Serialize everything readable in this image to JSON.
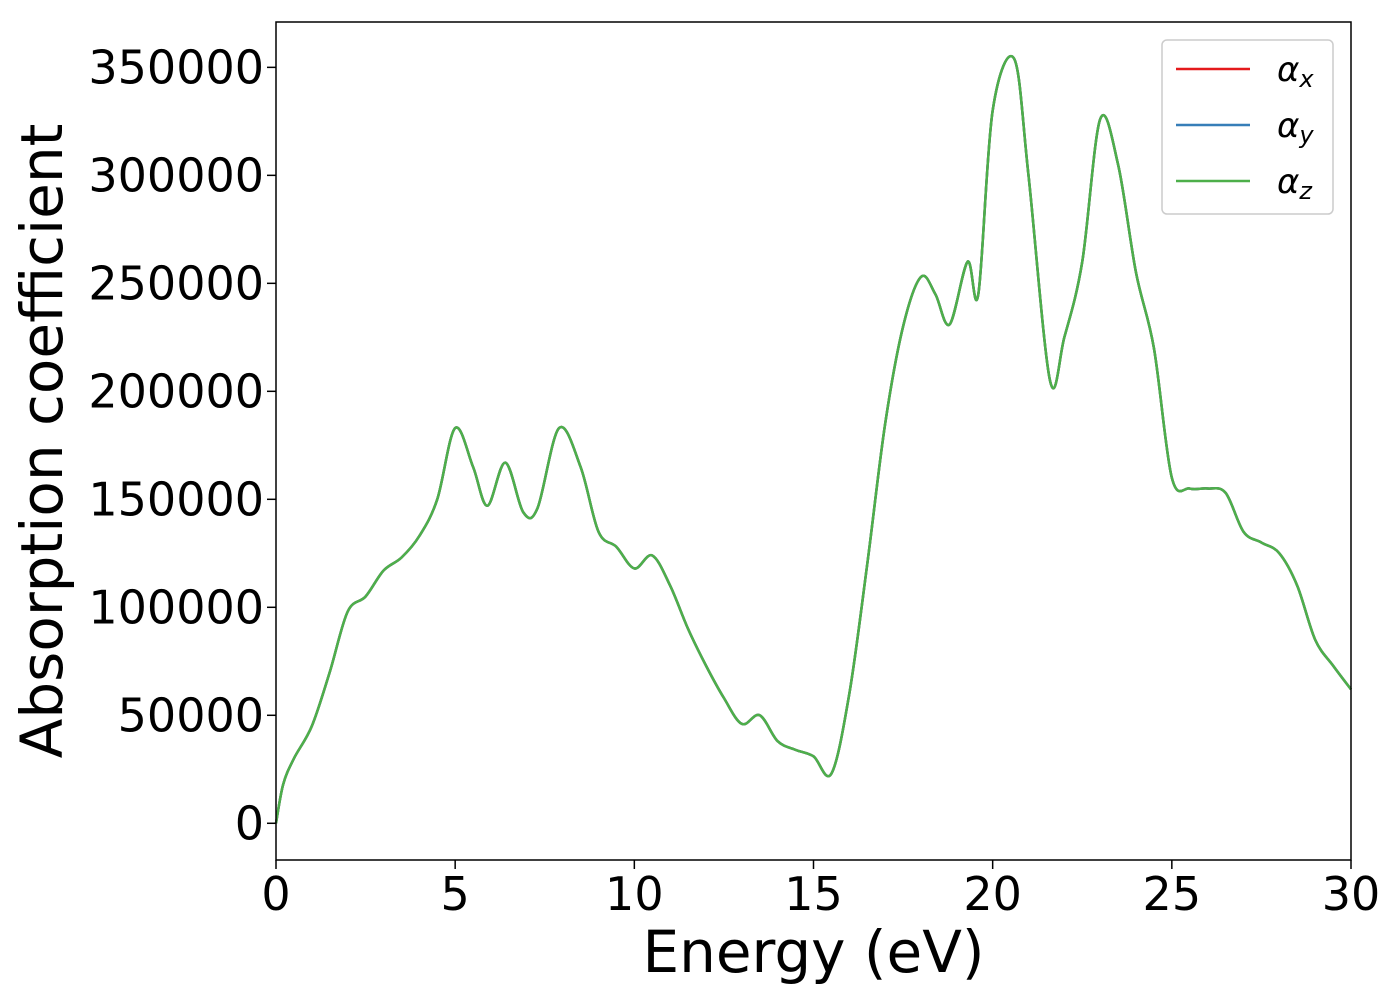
{
  "chart_data": {
    "type": "line",
    "title": "",
    "xlabel": "Energy (eV)",
    "ylabel": "Absorption coefficient",
    "xlim": [
      0,
      30
    ],
    "ylim": [
      -17000,
      371000
    ],
    "xticks": [
      0,
      5,
      10,
      15,
      20,
      25,
      30
    ],
    "xtick_labels": [
      "0",
      "5",
      "10",
      "15",
      "20",
      "25",
      "30"
    ],
    "yticks": [
      0,
      50000,
      100000,
      150000,
      200000,
      250000,
      300000,
      350000
    ],
    "ytick_labels": [
      "0",
      "50000",
      "100000",
      "150000",
      "200000",
      "250000",
      "300000",
      "350000"
    ],
    "grid": false,
    "legend_position": "top-right",
    "x": [
      0,
      0.2,
      0.5,
      1.0,
      1.5,
      2.0,
      2.5,
      3.0,
      3.5,
      4.0,
      4.5,
      5.0,
      5.5,
      5.9,
      6.4,
      6.9,
      7.3,
      7.9,
      8.5,
      9.0,
      9.5,
      10.0,
      10.5,
      11.0,
      11.5,
      12.0,
      12.5,
      13.0,
      13.5,
      14.0,
      14.5,
      15.0,
      15.5,
      16.0,
      16.5,
      17.0,
      17.5,
      18.0,
      18.4,
      18.8,
      19.3,
      19.6,
      20.0,
      20.6,
      21.0,
      21.6,
      22.0,
      22.5,
      23.0,
      23.5,
      24.0,
      24.5,
      25.0,
      25.5,
      26.0,
      26.5,
      27.0,
      27.5,
      28.0,
      28.5,
      29.0,
      29.5,
      30.0
    ],
    "series": [
      {
        "name": "αx",
        "label": "α",
        "sub": "x",
        "color": "#e41a1c",
        "values": [
          0,
          18000,
          30000,
          45000,
          70000,
          98000,
          105000,
          117000,
          123000,
          133000,
          150000,
          183000,
          165000,
          147000,
          167000,
          144000,
          146000,
          183000,
          165000,
          135000,
          128000,
          118000,
          124000,
          110000,
          90000,
          73000,
          58000,
          46000,
          50000,
          38000,
          34000,
          31000,
          23000,
          60000,
          120000,
          185000,
          230000,
          253000,
          245000,
          231000,
          260000,
          245000,
          330000,
          354000,
          300000,
          205000,
          225000,
          260000,
          326000,
          305000,
          255000,
          220000,
          160000,
          155000,
          155000,
          153000,
          135000,
          130000,
          125000,
          110000,
          85000,
          73000,
          62000
        ]
      },
      {
        "name": "αy",
        "label": "α",
        "sub": "y",
        "color": "#377eb8",
        "values": [
          0,
          18000,
          30000,
          45000,
          70000,
          98000,
          105000,
          117000,
          123000,
          133000,
          150000,
          183000,
          165000,
          147000,
          167000,
          144000,
          146000,
          183000,
          165000,
          135000,
          128000,
          118000,
          124000,
          110000,
          90000,
          73000,
          58000,
          46000,
          50000,
          38000,
          34000,
          31000,
          23000,
          60000,
          120000,
          185000,
          230000,
          253000,
          245000,
          231000,
          260000,
          245000,
          330000,
          354000,
          300000,
          205000,
          225000,
          260000,
          326000,
          305000,
          255000,
          220000,
          160000,
          155000,
          155000,
          153000,
          135000,
          130000,
          125000,
          110000,
          85000,
          73000,
          62000
        ]
      },
      {
        "name": "αz",
        "label": "α",
        "sub": "z",
        "color": "#4daf4a",
        "values": [
          0,
          18000,
          30000,
          45000,
          70000,
          98000,
          105000,
          117000,
          123000,
          133000,
          150000,
          183000,
          165000,
          147000,
          167000,
          144000,
          146000,
          183000,
          165000,
          135000,
          128000,
          118000,
          124000,
          110000,
          90000,
          73000,
          58000,
          46000,
          50000,
          38000,
          34000,
          31000,
          23000,
          60000,
          120000,
          185000,
          230000,
          253000,
          245000,
          231000,
          260000,
          245000,
          330000,
          354000,
          300000,
          205000,
          225000,
          260000,
          326000,
          305000,
          255000,
          220000,
          160000,
          155000,
          155000,
          153000,
          135000,
          130000,
          125000,
          110000,
          85000,
          73000,
          62000
        ]
      }
    ]
  }
}
